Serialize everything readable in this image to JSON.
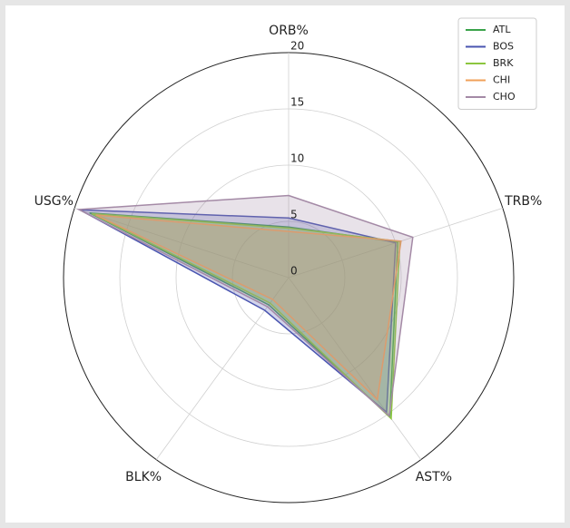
{
  "chart_data": {
    "type": "radar",
    "categories": [
      "ORB%",
      "TRB%",
      "AST%",
      "BLK%",
      "USG%"
    ],
    "series": [
      {
        "name": "ATL",
        "color": "#3aa34a",
        "values": [
          4.5,
          10.2,
          15.3,
          3.0,
          18.6
        ]
      },
      {
        "name": "BOS",
        "color": "#4a55b0",
        "values": [
          5.3,
          10.0,
          14.8,
          3.6,
          19.5
        ]
      },
      {
        "name": "BRK",
        "color": "#8cc63f",
        "values": [
          4.4,
          10.4,
          15.5,
          2.8,
          18.4
        ]
      },
      {
        "name": "CHI",
        "color": "#f0a05a",
        "values": [
          4.1,
          10.5,
          13.4,
          2.4,
          18.0
        ]
      },
      {
        "name": "CHO",
        "color": "#a48aa6",
        "values": [
          7.3,
          11.6,
          15.2,
          3.2,
          19.6
        ]
      }
    ],
    "ylim": [
      0,
      20
    ],
    "yticks": [
      0,
      5,
      10,
      15,
      20
    ],
    "grid": true,
    "legend": "upper right"
  }
}
